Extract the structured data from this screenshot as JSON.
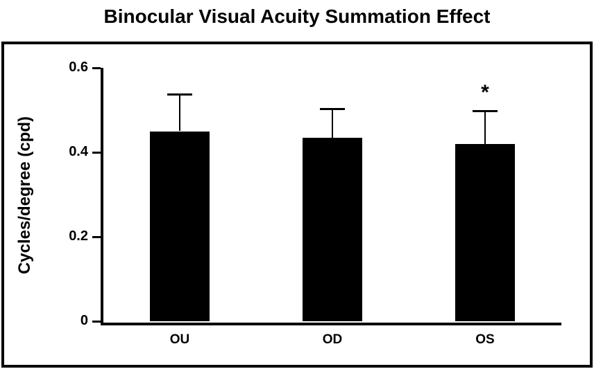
{
  "chart_data": {
    "type": "bar",
    "title": "Binocular Visual Acuity Summation Effect",
    "ylabel": "Cycles/degree (cpd)",
    "xlabel": "",
    "categories": [
      "OU",
      "OD",
      "OS"
    ],
    "values": [
      0.45,
      0.435,
      0.42
    ],
    "error_upper": [
      0.09,
      0.07,
      0.08
    ],
    "annotations": [
      {
        "category": "OS",
        "text": "*"
      }
    ],
    "ylim": [
      0,
      0.6
    ],
    "yticks": [
      0,
      0.2,
      0.4,
      0.6
    ],
    "bar_color": "#000000",
    "background_color": "#ffffff",
    "grid": false,
    "legend": false
  }
}
